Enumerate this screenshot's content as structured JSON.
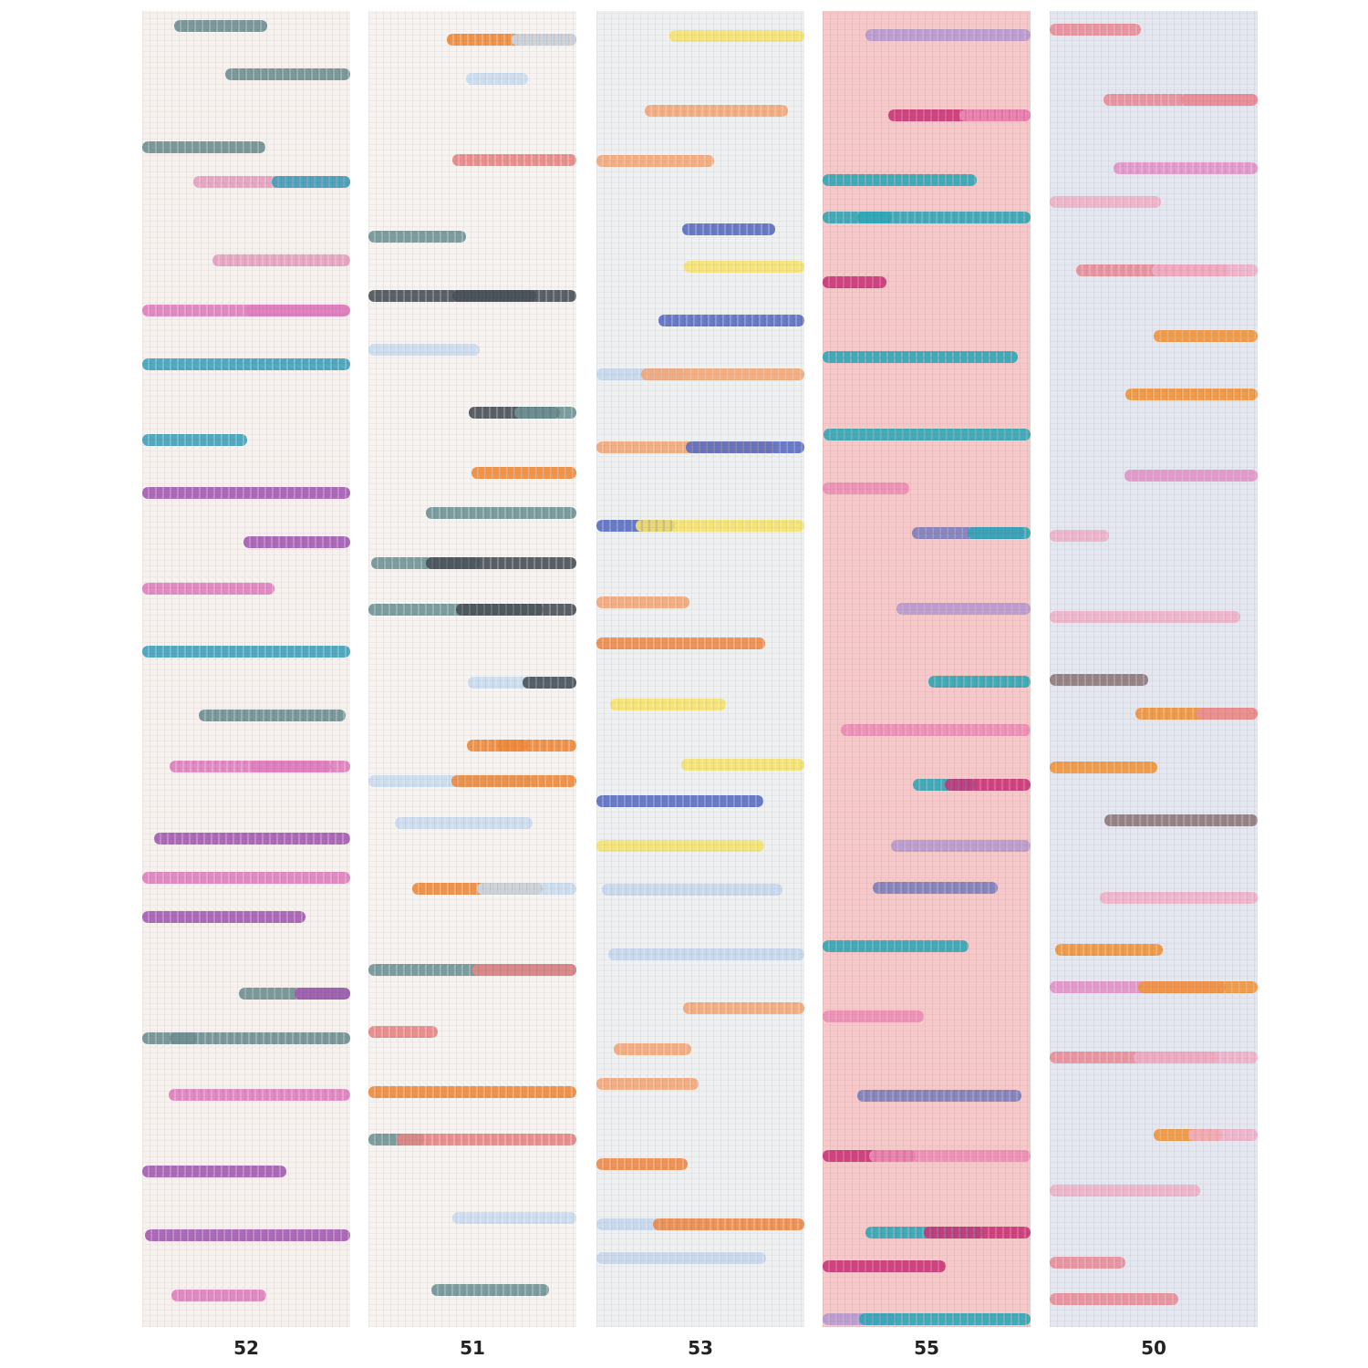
{
  "swatches": [
    {
      "label": "52",
      "base_color": "#f7f1ee",
      "stripe_colors": [
        "#a65bb5",
        "#e07fbf",
        "#3ea3bd",
        "#6e8f93",
        "#e7a0c0"
      ]
    },
    {
      "label": "51",
      "base_color": "#f6f3f1",
      "stripe_colors": [
        "#f08a3a",
        "#e98585",
        "#6f9497",
        "#4a5158",
        "#c9dcf0"
      ]
    },
    {
      "label": "53",
      "base_color": "#eef0f1",
      "stripe_colors": [
        "#f28a46",
        "#5a6ec4",
        "#c5d8ee",
        "#f7e36a",
        "#f6a777"
      ]
    },
    {
      "label": "55",
      "base_color": "#f6c8c9",
      "stripe_colors": [
        "#cc3579",
        "#2fa8b8",
        "#7b7fbf",
        "#ee8db7",
        "#b69ad1"
      ]
    },
    {
      "label": "50",
      "base_color": "#e4e6f0",
      "stripe_colors": [
        "#f2943a",
        "#e393c8",
        "#8f7a7c",
        "#ea8e9a",
        "#f1b0c7"
      ]
    }
  ]
}
